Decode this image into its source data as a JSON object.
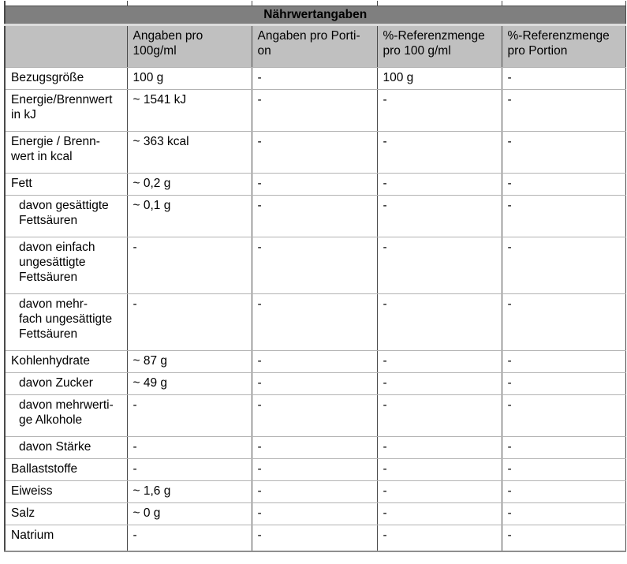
{
  "title": "Nährwertangaben",
  "columns": [
    "",
    "Angaben pro\n100g/ml",
    "Angaben pro Porti-\non",
    "%-Referenzmenge\npro 100 g/ml",
    "%-Referenzmenge\npro Portion"
  ],
  "rows": [
    {
      "label": "Bezugsgröße",
      "indent": false,
      "values": [
        "100 g",
        "-",
        "100 g",
        "-"
      ]
    },
    {
      "label": "Energie/Brennwert\nin kJ",
      "indent": false,
      "values": [
        "~ 1541 kJ",
        "-",
        "-",
        "-"
      ]
    },
    {
      "label": "Energie / Brenn-\nwert in kcal",
      "indent": false,
      "values": [
        "~ 363 kcal",
        "-",
        "-",
        "-"
      ]
    },
    {
      "label": "Fett",
      "indent": false,
      "values": [
        "~ 0,2 g",
        "-",
        "-",
        "-"
      ]
    },
    {
      "label": "davon gesättigte\nFettsäuren",
      "indent": true,
      "values": [
        "~ 0,1 g",
        "-",
        "-",
        "-"
      ]
    },
    {
      "label": "davon einfach\nungesättigte\nFettsäuren",
      "indent": true,
      "values": [
        "-",
        "-",
        "-",
        "-"
      ]
    },
    {
      "label": "davon mehr-\nfach ungesättigte\nFettsäuren",
      "indent": true,
      "values": [
        "-",
        "-",
        "-",
        "-"
      ]
    },
    {
      "label": "Kohlenhydrate",
      "indent": false,
      "values": [
        "~ 87 g",
        "-",
        "-",
        "-"
      ]
    },
    {
      "label": "davon Zucker",
      "indent": true,
      "values": [
        "~ 49 g",
        "-",
        "-",
        "-"
      ]
    },
    {
      "label": "davon mehrwerti-\nge Alkohole",
      "indent": true,
      "values": [
        "-",
        "-",
        "-",
        "-"
      ]
    },
    {
      "label": "davon Stärke",
      "indent": true,
      "values": [
        "-",
        "-",
        "-",
        "-"
      ]
    },
    {
      "label": "Ballaststoffe",
      "indent": false,
      "values": [
        "-",
        "-",
        "-",
        "-"
      ]
    },
    {
      "label": "Eiweiss",
      "indent": false,
      "values": [
        "~ 1,6 g",
        "-",
        "-",
        "-"
      ]
    },
    {
      "label": "Salz",
      "indent": false,
      "values": [
        "~ 0 g",
        "-",
        "-",
        "-"
      ]
    },
    {
      "label": "Natrium",
      "indent": false,
      "values": [
        "-",
        "-",
        "-",
        "-"
      ]
    }
  ],
  "colors": {
    "title_bg": "#7f7f7f",
    "header_bg": "#c0c0c0",
    "label_bg": "#c0c0c0",
    "cell_bg": "#ffffff",
    "border_dark": "#4a4a4a",
    "border_light": "#b3b3b3",
    "gap_light": "#dcdcdc",
    "bottom_border": "#8f8f8f",
    "text": "#000000"
  }
}
